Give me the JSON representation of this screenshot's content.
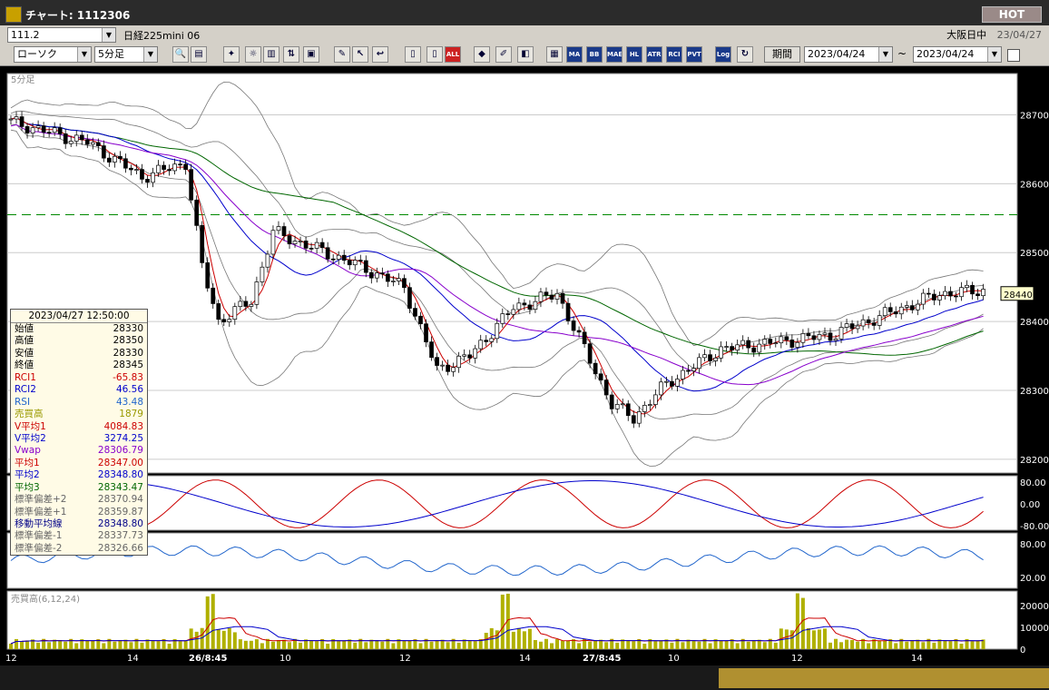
{
  "window": {
    "title": "チャート: 1112306",
    "hot_label": "HOT"
  },
  "bar1": {
    "code": "111.2",
    "instrument": "日経225mini 06",
    "session": "大阪日中",
    "date": "23/04/27"
  },
  "bar2": {
    "chart_kind": "ローソク",
    "interval": "5分足",
    "period_label": "期間",
    "date_from": "2023/04/24",
    "tilde": "~",
    "date_to": "2023/04/24",
    "buttons": [
      "ALL",
      "MA",
      "BB",
      "MAE",
      "HL",
      "ATR",
      "RCI",
      "PVT",
      "Log"
    ]
  },
  "panel": {
    "interval_label": "5分足",
    "volume_label": "売買高(6,12,24)",
    "price_label": "28440",
    "price_ticks": [
      "28700",
      "28600",
      "28500",
      "28400",
      "28300",
      "28200"
    ],
    "rci_ticks": [
      "80.00",
      "0.00",
      "-80.00"
    ],
    "rsi_ticks": [
      "80.00",
      "20.00"
    ],
    "vol_ticks": [
      "20000",
      "10000",
      "0"
    ],
    "time_labels": [
      {
        "t": "12",
        "bold": false
      },
      {
        "t": "14",
        "bold": false
      },
      {
        "t": "26/8:45",
        "bold": true
      },
      {
        "t": "10",
        "bold": false
      },
      {
        "t": "12",
        "bold": false
      },
      {
        "t": "14",
        "bold": false
      },
      {
        "t": "27/8:45",
        "bold": true
      },
      {
        "t": "10",
        "bold": false
      },
      {
        "t": "12",
        "bold": false
      },
      {
        "t": "14",
        "bold": false
      }
    ]
  },
  "info": {
    "datetime": "2023/04/27 12:50:00",
    "rows": [
      {
        "label": "始値",
        "value": "28330",
        "color": "#000000"
      },
      {
        "label": "高値",
        "value": "28350",
        "color": "#000000"
      },
      {
        "label": "安値",
        "value": "28330",
        "color": "#000000"
      },
      {
        "label": "終値",
        "value": "28345",
        "color": "#000000"
      },
      {
        "label": "RCI1",
        "value": "-65.83",
        "color": "#cc0000"
      },
      {
        "label": "RCI2",
        "value": "46.56",
        "color": "#0000cc"
      },
      {
        "label": "RSI",
        "value": "43.48",
        "color": "#2266cc"
      },
      {
        "label": "売買高",
        "value": "1879",
        "color": "#999900"
      },
      {
        "label": "V平均1",
        "value": "4084.83",
        "color": "#cc0000"
      },
      {
        "label": "V平均2",
        "value": "3274.25",
        "color": "#0000cc"
      },
      {
        "label": "Vwap",
        "value": "28306.79",
        "color": "#8800cc"
      },
      {
        "label": "平均1",
        "value": "28347.00",
        "color": "#cc0000"
      },
      {
        "label": "平均2",
        "value": "28348.80",
        "color": "#0000cc"
      },
      {
        "label": "平均3",
        "value": "28343.47",
        "color": "#006600"
      },
      {
        "label": "標準偏差+2",
        "value": "28370.94",
        "color": "#666666"
      },
      {
        "label": "標準偏差+1",
        "value": "28359.87",
        "color": "#666666"
      },
      {
        "label": "移動平均線",
        "value": "28348.80",
        "color": "#000088"
      },
      {
        "label": "標準偏差-1",
        "value": "28337.73",
        "color": "#666666"
      },
      {
        "label": "標準偏差-2",
        "value": "28326.66",
        "color": "#666666"
      }
    ]
  },
  "colors": {
    "up": "#ffffff",
    "down": "#000000",
    "ma1": "#cc0000",
    "ma2": "#0000cc",
    "ma3": "#006600",
    "vwap": "#8800cc",
    "band": "#777777",
    "rsi": "#2266cc",
    "volume": "#b0b000"
  },
  "chart_data": {
    "type": "candlestick",
    "bar_interval": "5分足",
    "ylim": [
      28180,
      28760
    ],
    "reference_level": 28555,
    "current_price": 28440,
    "key_points": [
      {
        "i": 0,
        "p": 28690
      },
      {
        "i": 14,
        "p": 28660
      },
      {
        "i": 24,
        "p": 28610
      },
      {
        "i": 32,
        "p": 28630
      },
      {
        "i": 35,
        "p": 28480
      },
      {
        "i": 38,
        "p": 28400
      },
      {
        "i": 44,
        "p": 28430
      },
      {
        "i": 48,
        "p": 28530
      },
      {
        "i": 56,
        "p": 28505
      },
      {
        "i": 64,
        "p": 28480
      },
      {
        "i": 72,
        "p": 28450
      },
      {
        "i": 78,
        "p": 28330
      },
      {
        "i": 84,
        "p": 28350
      },
      {
        "i": 92,
        "p": 28420
      },
      {
        "i": 100,
        "p": 28440
      },
      {
        "i": 110,
        "p": 28280
      },
      {
        "i": 114,
        "p": 28260
      },
      {
        "i": 120,
        "p": 28310
      },
      {
        "i": 130,
        "p": 28360
      },
      {
        "i": 140,
        "p": 28370
      },
      {
        "i": 150,
        "p": 28380
      },
      {
        "i": 160,
        "p": 28410
      },
      {
        "i": 170,
        "p": 28440
      },
      {
        "i": 178,
        "p": 28445
      }
    ],
    "candle_count": 179
  }
}
